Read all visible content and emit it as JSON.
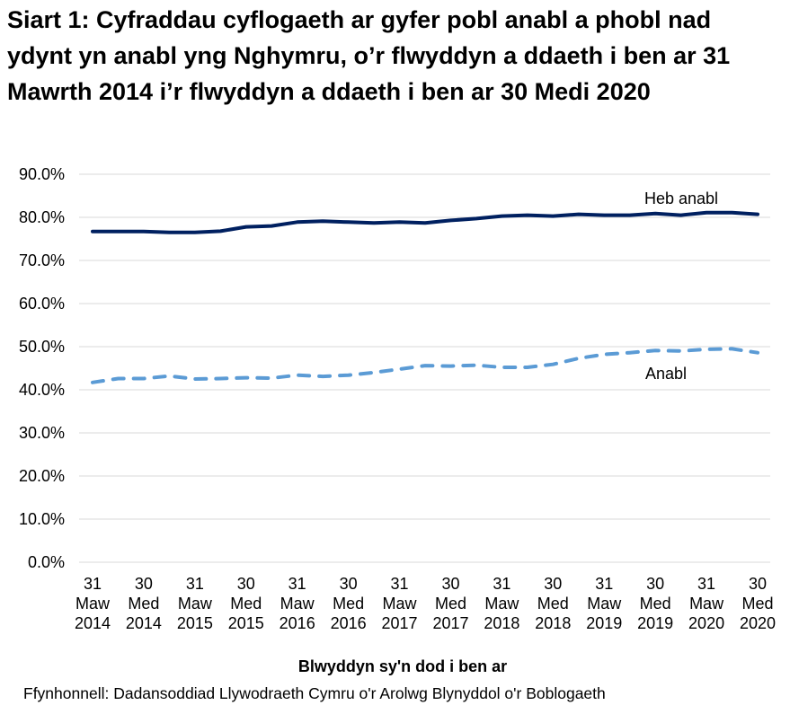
{
  "chart_data": {
    "type": "line",
    "title": "Siart 1: Cyfraddau cyflogaeth ar gyfer pobl anabl a phobl nad ydynt yn anabl yng Nghymru, o’r flwyddyn a ddaeth i ben ar 31 Mawrth 2014 i’r flwyddyn a ddaeth i ben ar 30 Medi 2020",
    "xlabel": "Blwyddyn sy'n dod i ben ar",
    "ylabel": "",
    "ylim": [
      0,
      90
    ],
    "yticks": [
      "0.0%",
      "10.0%",
      "20.0%",
      "30.0%",
      "40.0%",
      "50.0%",
      "60.0%",
      "70.0%",
      "80.0%",
      "90.0%"
    ],
    "grid": true,
    "x_tick_labels": [
      [
        "31",
        "Maw",
        "2014"
      ],
      [
        "30",
        "Med",
        "2014"
      ],
      [
        "31",
        "Maw",
        "2015"
      ],
      [
        "30",
        "Med",
        "2015"
      ],
      [
        "31",
        "Maw",
        "2016"
      ],
      [
        "30",
        "Med",
        "2016"
      ],
      [
        "31",
        "Maw",
        "2017"
      ],
      [
        "30",
        "Med",
        "2017"
      ],
      [
        "31",
        "Maw",
        "2018"
      ],
      [
        "30",
        "Med",
        "2018"
      ],
      [
        "31",
        "Maw",
        "2019"
      ],
      [
        "30",
        "Med",
        "2019"
      ],
      [
        "31",
        "Maw",
        "2020"
      ],
      [
        "30",
        "Med",
        "2020"
      ]
    ],
    "x": [
      "Mar 2014",
      "Jun 2014",
      "Sep 2014",
      "Dec 2014",
      "Mar 2015",
      "Jun 2015",
      "Sep 2015",
      "Dec 2015",
      "Mar 2016",
      "Jun 2016",
      "Sep 2016",
      "Dec 2016",
      "Mar 2017",
      "Jun 2017",
      "Sep 2017",
      "Dec 2017",
      "Mar 2018",
      "Jun 2018",
      "Sep 2018",
      "Dec 2018",
      "Mar 2019",
      "Jun 2019",
      "Sep 2019",
      "Dec 2019",
      "Mar 2020",
      "Jun 2020",
      "Sep 2020"
    ],
    "series": [
      {
        "name": "Heb anabl",
        "color": "#002060",
        "style": "solid",
        "values": [
          76.7,
          76.7,
          76.7,
          76.5,
          76.5,
          76.8,
          77.8,
          78.0,
          78.9,
          79.1,
          78.9,
          78.7,
          78.9,
          78.7,
          79.3,
          79.7,
          80.3,
          80.5,
          80.3,
          80.7,
          80.5,
          80.5,
          80.9,
          80.5,
          81.1,
          81.1,
          80.7
        ]
      },
      {
        "name": "Anabl",
        "color": "#5B9BD5",
        "style": "dashed",
        "values": [
          41.7,
          42.6,
          42.6,
          43.2,
          42.5,
          42.6,
          42.8,
          42.7,
          43.4,
          43.1,
          43.4,
          44.0,
          44.8,
          45.6,
          45.5,
          45.7,
          45.2,
          45.2,
          45.9,
          47.3,
          48.2,
          48.6,
          49.1,
          49.0,
          49.4,
          49.5,
          48.6
        ]
      }
    ],
    "source": "Ffynhonnell: Dadansoddiad Llywodraeth Cymru o'r Arolwg Blynyddol o'r Boblogaeth"
  }
}
